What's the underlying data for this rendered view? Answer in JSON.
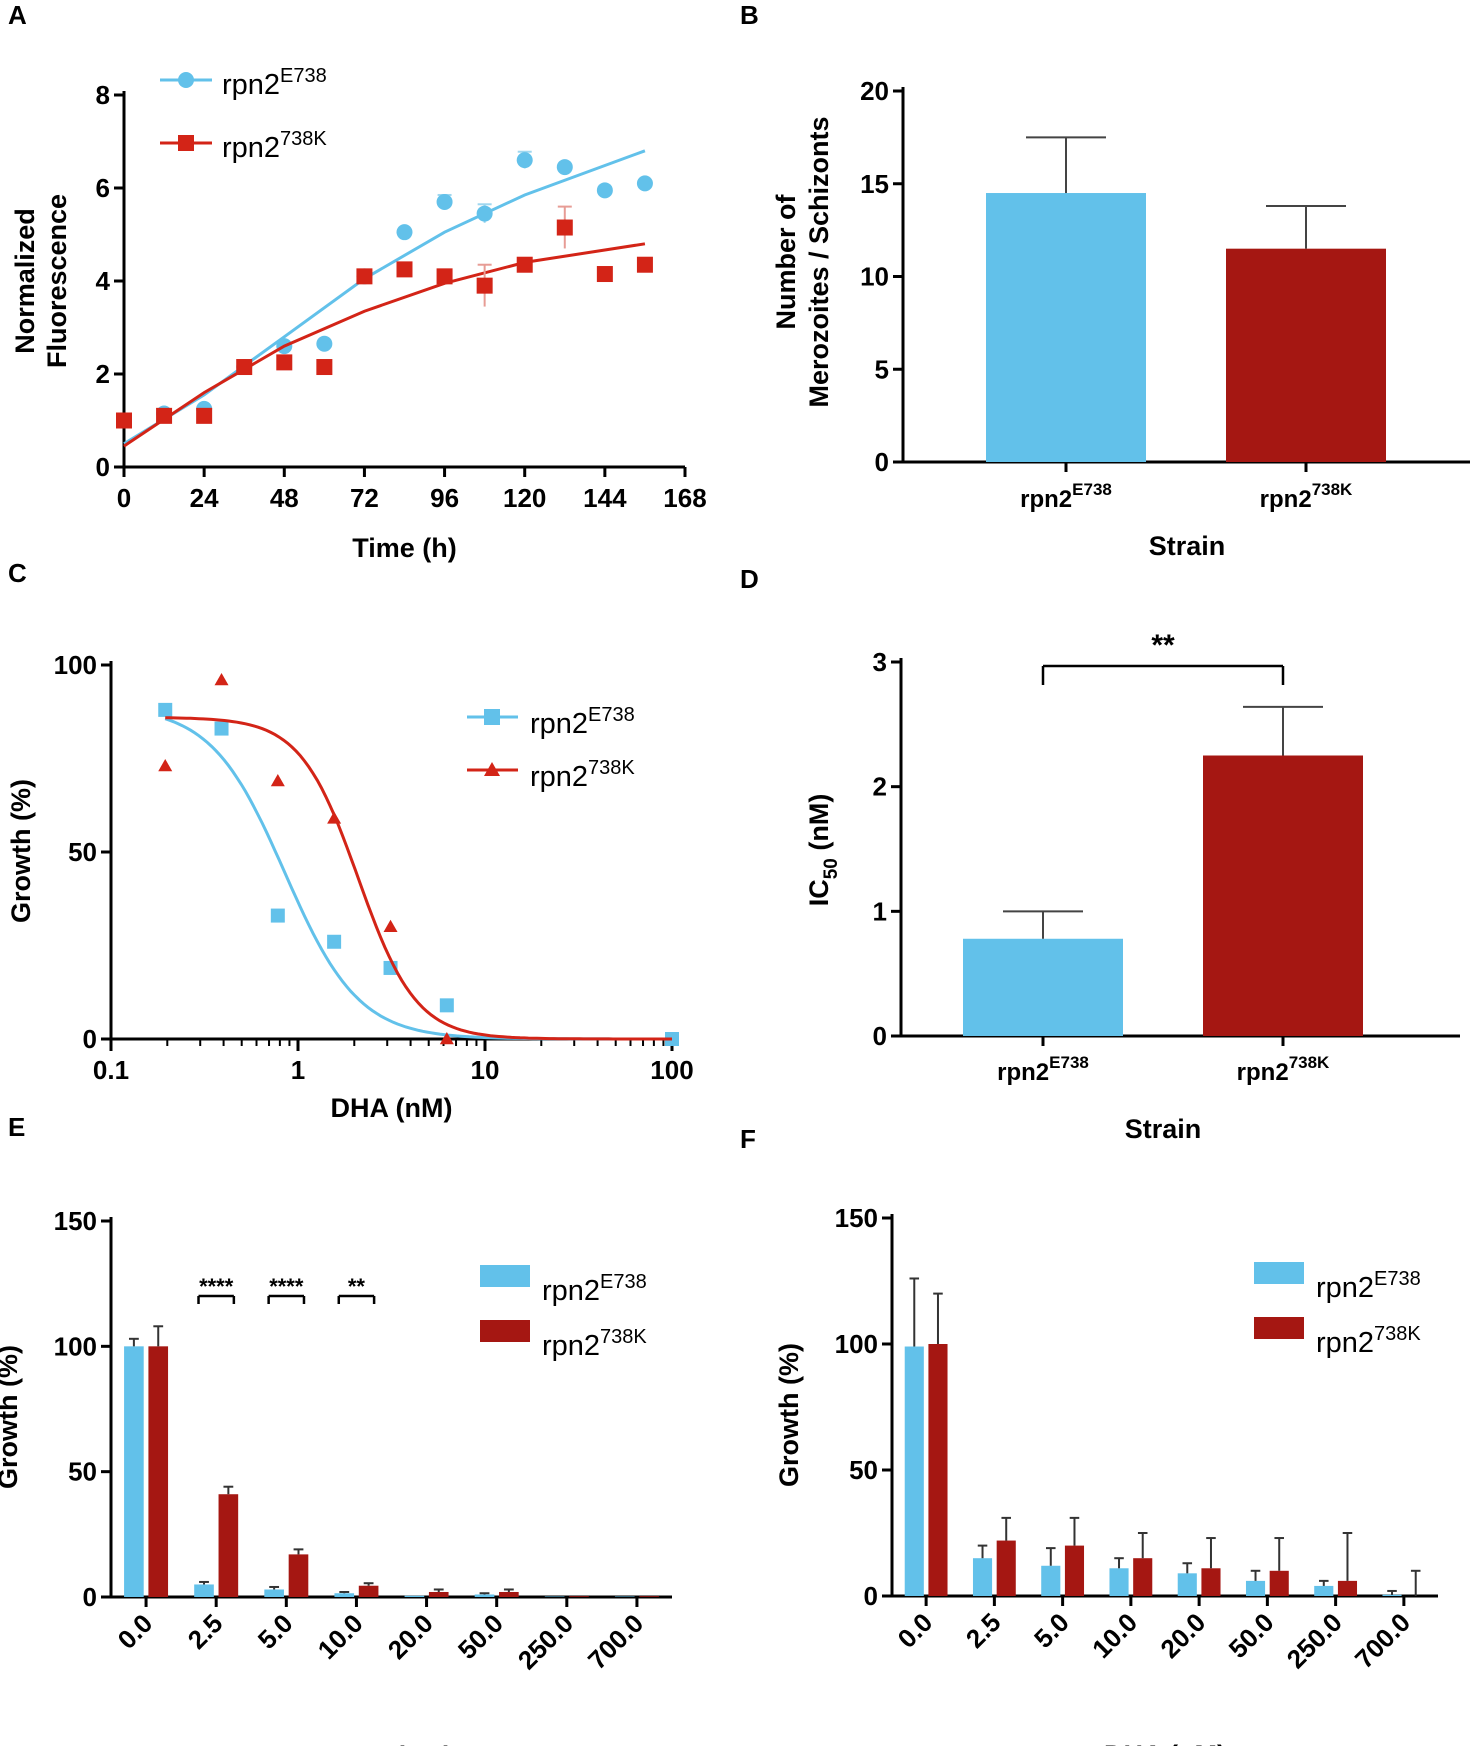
{
  "colors": {
    "blue": "#62c1ea",
    "red": "#d32417",
    "darkred": "#a51712",
    "axis": "#000000"
  },
  "panels": {
    "A": "A",
    "B": "B",
    "C": "C",
    "D": "D",
    "E": "E",
    "F": "F"
  },
  "chart_data": [
    {
      "id": "A",
      "type": "scatter",
      "title": "",
      "xlabel": "Time (h)",
      "ylabel": "Normalized Fluorescence",
      "xlim": [
        0,
        168
      ],
      "ylim": [
        0,
        8
      ],
      "xticks": [
        0,
        24,
        48,
        72,
        96,
        120,
        144,
        168
      ],
      "yticks": [
        0,
        2,
        4,
        6,
        8
      ],
      "legend": {
        "position": "top-left"
      },
      "series": [
        {
          "name": "rpn2",
          "name_sup": "E738",
          "color": "blue",
          "marker": "circle",
          "x": [
            0,
            12,
            24,
            36,
            48,
            60,
            72,
            84,
            96,
            108,
            120,
            132,
            144,
            156
          ],
          "y": [
            1.0,
            1.15,
            1.25,
            2.15,
            2.6,
            2.65,
            4.1,
            5.05,
            5.7,
            5.45,
            6.6,
            6.45,
            5.95,
            6.1
          ],
          "err": [
            0.08,
            0.05,
            0.05,
            0.05,
            0.05,
            0.05,
            0.08,
            0.06,
            0.15,
            0.2,
            0.18,
            0.05,
            0.05,
            0.05
          ],
          "fit": [
            [
              0,
              0.5
            ],
            [
              24,
              1.55
            ],
            [
              48,
              2.8
            ],
            [
              72,
              4.05
            ],
            [
              96,
              5.05
            ],
            [
              120,
              5.85
            ],
            [
              156,
              6.8
            ]
          ]
        },
        {
          "name": "rpn2",
          "name_sup": "738K",
          "color": "red",
          "marker": "square",
          "x": [
            0,
            12,
            24,
            36,
            48,
            60,
            72,
            84,
            96,
            108,
            120,
            132,
            144,
            156
          ],
          "y": [
            1.0,
            1.1,
            1.1,
            2.15,
            2.25,
            2.15,
            4.1,
            4.25,
            4.1,
            3.9,
            4.35,
            5.15,
            4.15,
            4.35
          ],
          "err": [
            0.05,
            0.05,
            0.05,
            0.05,
            0.05,
            0.05,
            0.08,
            0.1,
            0.05,
            0.45,
            0.08,
            0.45,
            0.05,
            0.05
          ],
          "fit": [
            [
              0,
              0.45
            ],
            [
              24,
              1.6
            ],
            [
              48,
              2.6
            ],
            [
              72,
              3.35
            ],
            [
              96,
              3.95
            ],
            [
              120,
              4.4
            ],
            [
              156,
              4.8
            ]
          ]
        }
      ]
    },
    {
      "id": "B",
      "type": "bar",
      "xlabel": "Strain",
      "ylabel_lines": [
        "Number of",
        "Merozoites / Schizonts"
      ],
      "ylim": [
        0,
        20
      ],
      "yticks": [
        0,
        5,
        10,
        15,
        20
      ],
      "categories": [
        {
          "name": "rpn2",
          "sup": "E738",
          "value": 14.5,
          "err": 3.0,
          "color": "blue"
        },
        {
          "name": "rpn2",
          "sup": "738K",
          "value": 11.5,
          "err": 2.3,
          "color": "darkred"
        }
      ]
    },
    {
      "id": "C",
      "type": "scatter",
      "xlabel": "DHA (nM)",
      "ylabel": "Growth (%)",
      "xscale": "log",
      "xlim": [
        0.1,
        100
      ],
      "ylim": [
        0,
        100
      ],
      "xticks": [
        0.1,
        1,
        10,
        100
      ],
      "xticklabels": [
        "0.1",
        "1",
        "10",
        "100"
      ],
      "yticks": [
        0,
        50,
        100
      ],
      "legend": {
        "position": "top-right"
      },
      "series": [
        {
          "name": "rpn2",
          "name_sup": "E738",
          "color": "blue",
          "marker": "square",
          "x": [
            0.195,
            0.39,
            0.78,
            1.56,
            3.125,
            6.25,
            100
          ],
          "y": [
            88,
            83,
            33,
            26,
            19,
            9,
            0
          ],
          "fit_params": {
            "top": 89,
            "bottom": 0,
            "ic50": 0.85,
            "hill": 2.2
          }
        },
        {
          "name": "rpn2",
          "name_sup": "738K",
          "color": "red",
          "marker": "triangle",
          "x": [
            0.195,
            0.39,
            0.78,
            1.56,
            3.125,
            6.25
          ],
          "y": [
            73,
            96,
            69,
            59,
            30,
            0
          ],
          "fit_params": {
            "top": 86,
            "bottom": 0,
            "ic50": 2.1,
            "hill": 2.8
          }
        }
      ]
    },
    {
      "id": "D",
      "type": "bar",
      "xlabel": "Strain",
      "ylabel": "IC",
      "ylabel_sub": "50",
      "ylabel_unit": " (nM)",
      "ylim": [
        0,
        3
      ],
      "yticks": [
        0,
        1,
        2,
        3
      ],
      "significance": "**",
      "categories": [
        {
          "name": "rpn2",
          "sup": "E738",
          "value": 0.78,
          "err": 0.22,
          "color": "blue"
        },
        {
          "name": "rpn2",
          "sup": "738K",
          "value": 2.25,
          "err": 0.39,
          "color": "darkred"
        }
      ]
    },
    {
      "id": "E",
      "type": "bar",
      "xlabel": "DHA (nM)",
      "ylabel": "Growth (%)",
      "ylim": [
        0,
        150
      ],
      "yticks": [
        0,
        50,
        100,
        150
      ],
      "categories": [
        "0.0",
        "2.5",
        "5.0",
        "10.0",
        "20.0",
        "50.0",
        "250.0",
        "700.0"
      ],
      "legend": {
        "position": "top-right"
      },
      "series": [
        {
          "name": "rpn2",
          "name_sup": "E738",
          "color": "blue",
          "values": [
            100,
            5,
            3,
            1.5,
            0.5,
            1,
            0.2,
            0.2
          ],
          "err": [
            3,
            1,
            1,
            0.5,
            0.3,
            0.5,
            0.2,
            0.2
          ]
        },
        {
          "name": "rpn2",
          "name_sup": "738K",
          "color": "darkred",
          "values": [
            100,
            41,
            17,
            4.5,
            2,
            2,
            0.3,
            0.3
          ],
          "err": [
            8,
            3,
            2,
            1,
            1,
            1,
            0.2,
            0.2
          ]
        }
      ],
      "significance": [
        {
          "category_index": 1,
          "label": "****"
        },
        {
          "category_index": 2,
          "label": "****"
        },
        {
          "category_index": 3,
          "label": "**"
        }
      ]
    },
    {
      "id": "F",
      "type": "bar",
      "xlabel": "DHA (nM)",
      "ylabel": "Growth (%)",
      "ylim": [
        0,
        150
      ],
      "yticks": [
        0,
        50,
        100,
        150
      ],
      "categories": [
        "0.0",
        "2.5",
        "5.0",
        "10.0",
        "20.0",
        "50.0",
        "250.0",
        "700.0"
      ],
      "legend": {
        "position": "top-right"
      },
      "series": [
        {
          "name": "rpn2",
          "name_sup": "E738",
          "color": "blue",
          "values": [
            99,
            15,
            12,
            11,
            9,
            6,
            4,
            0.5
          ],
          "err": [
            27,
            5,
            7,
            4,
            4,
            4,
            2,
            1.5
          ]
        },
        {
          "name": "rpn2",
          "name_sup": "738K",
          "color": "darkred",
          "values": [
            100,
            22,
            20,
            15,
            11,
            10,
            6,
            0
          ],
          "err": [
            20,
            9,
            11,
            10,
            12,
            13,
            19,
            10
          ]
        }
      ]
    }
  ]
}
